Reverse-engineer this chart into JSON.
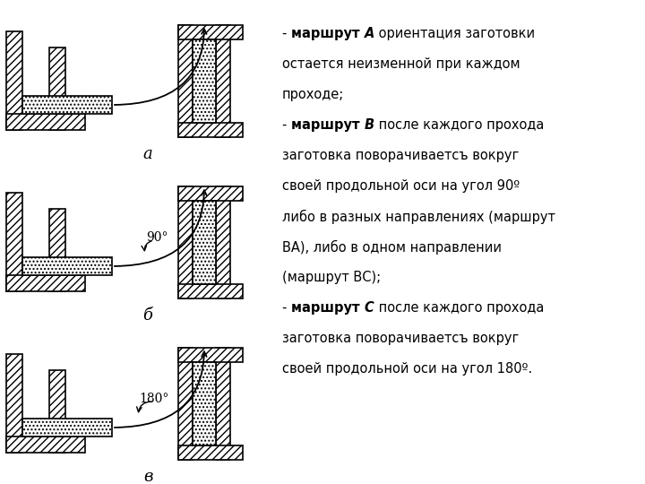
{
  "bg_color": "#ffffff",
  "hatch_die": "////",
  "hatch_wp": "....",
  "label_a": "а",
  "label_b": "б",
  "label_c": "в",
  "angle_b": "90°",
  "angle_c": "180°",
  "text_lines": [
    [
      [
        "- ",
        false,
        false
      ],
      [
        "маршрут ",
        true,
        false
      ],
      [
        "А",
        true,
        true
      ],
      [
        " ориентация заготовки",
        false,
        false
      ]
    ],
    [
      [
        "остается неизменной при каждом",
        false,
        false
      ]
    ],
    [
      [
        "проходе;",
        false,
        false
      ]
    ],
    [
      [
        "- ",
        false,
        false
      ],
      [
        "маршрут ",
        true,
        false
      ],
      [
        "В",
        true,
        true
      ],
      [
        " после каждого прохода",
        false,
        false
      ]
    ],
    [
      [
        "заготовка поворачиваетсъ вокруг",
        false,
        false
      ]
    ],
    [
      [
        "своей продольной оси на угол 90º",
        false,
        false
      ]
    ],
    [
      [
        "либо в разных направлениях (маршрут",
        false,
        false
      ]
    ],
    [
      [
        "ВА), либо в одном направлении",
        false,
        false
      ]
    ],
    [
      [
        "(маршрут ВС);",
        false,
        false
      ]
    ],
    [
      [
        "- ",
        false,
        false
      ],
      [
        "маршрут ",
        true,
        false
      ],
      [
        "С",
        true,
        true
      ],
      [
        " после каждого прохода",
        false,
        false
      ]
    ],
    [
      [
        "заготовка поворачиваетсъ вокруг",
        false,
        false
      ]
    ],
    [
      [
        "своей продольной оси на угол 180º.",
        false,
        false
      ]
    ]
  ]
}
